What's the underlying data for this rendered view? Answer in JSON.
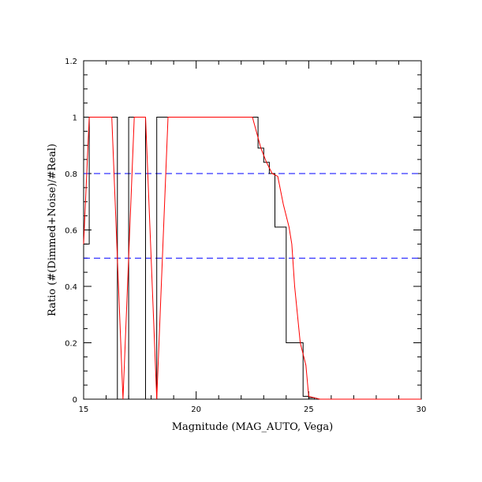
{
  "chart_data": {
    "type": "line",
    "title": "",
    "xlabel": "Magnitude (MAG_AUTO, Vega)",
    "ylabel": "Ratio (#(Dimmed+Noise)/#Real)",
    "xlim": [
      15,
      30
    ],
    "ylim": [
      0,
      1.2
    ],
    "xticks": [
      15,
      20,
      25,
      30
    ],
    "yticks": [
      0,
      0.2,
      0.4,
      0.6,
      0.8,
      1,
      1.2
    ],
    "xtick_labels": [
      "15",
      "20",
      "25",
      "30"
    ],
    "ytick_labels": [
      "0",
      "0.2",
      "0.4",
      "0.6",
      "0.8",
      "1",
      "1.2"
    ],
    "grid": false,
    "hlines": [
      {
        "y": 0.8,
        "color": "#0000ff",
        "style": "dashed"
      },
      {
        "y": 0.5,
        "color": "#0000ff",
        "style": "dashed"
      }
    ],
    "series": [
      {
        "style": "step",
        "color": "#000000",
        "edges": [
          15,
          15.25,
          15.5,
          15.75,
          16,
          16.25,
          16.5,
          16.75,
          17,
          17.25,
          17.5,
          17.75,
          18,
          18.25,
          18.5,
          18.75,
          19,
          19.25,
          19.5,
          19.75,
          20,
          20.25,
          20.5,
          20.75,
          21,
          21.25,
          21.5,
          21.75,
          22,
          22.25,
          22.5,
          22.75,
          23,
          23.25,
          23.5,
          23.75,
          24,
          24.25,
          24.5,
          24.75,
          25,
          25.25,
          25.5,
          25.75,
          26,
          26.25,
          26.5,
          26.75,
          27,
          27.25,
          27.5,
          27.75,
          28,
          28.25,
          28.5,
          28.75,
          29,
          29.25,
          29.5,
          29.75,
          30
        ],
        "values": [
          0.55,
          1,
          1,
          1,
          1,
          1,
          0,
          0,
          1,
          1,
          1,
          0,
          0,
          1,
          1,
          1,
          1,
          1,
          1,
          1,
          1,
          1,
          1,
          1,
          1,
          1,
          1,
          1,
          1,
          1,
          1,
          0.89,
          0.84,
          0.8,
          0.61,
          0.61,
          0.2,
          0.2,
          0.2,
          0.01,
          0.005,
          0,
          0,
          0,
          0,
          0,
          0,
          0,
          0,
          0,
          0,
          0,
          0,
          0,
          0,
          0,
          0,
          0,
          0,
          0,
          0
        ]
      },
      {
        "style": "line",
        "color": "#ff0000",
        "x": [
          15,
          15.25,
          15.75,
          16.25,
          16.75,
          17.25,
          17.75,
          18.25,
          18.75,
          19.25,
          19.75,
          20.25,
          20.75,
          21.25,
          21.75,
          22.25,
          22.5,
          22.875,
          23.125,
          23.375,
          23.625,
          23.875,
          24.125,
          24.25,
          24.375,
          24.625,
          24.875,
          25.0,
          25.25,
          25.5,
          26,
          27,
          28,
          29,
          30
        ],
        "y": [
          0.55,
          1,
          1,
          1,
          0,
          1,
          1,
          0,
          1,
          1,
          1,
          1,
          1,
          1,
          1,
          1,
          1,
          0.89,
          0.84,
          0.8,
          0.79,
          0.69,
          0.61,
          0.55,
          0.4,
          0.2,
          0.12,
          0.01,
          0.005,
          0,
          0,
          0,
          0,
          0,
          0
        ]
      }
    ]
  }
}
